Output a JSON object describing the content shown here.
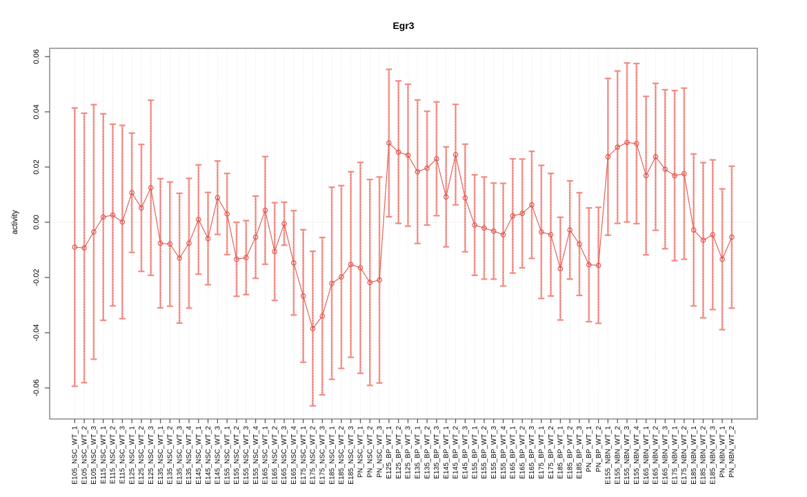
{
  "page": {
    "background": "#ffffff"
  },
  "chart_data": {
    "type": "line",
    "subtype": "points-with-symmetric-error-bars",
    "title": "Egr3",
    "xlabel": "",
    "ylabel": "activity",
    "ylim": [
      -0.071,
      0.063
    ],
    "yticks": [
      0.06,
      0.04,
      0.02,
      0.0,
      -0.02,
      -0.04,
      -0.06
    ],
    "ytick_labels": [
      "0.06",
      "0.04",
      "0.02",
      "0.00",
      "-0.02",
      "-0.04",
      "-0.06"
    ],
    "legend": "none",
    "grid": {
      "vertical_dotted_per_category": true,
      "horizontal_zero_line_dotted": true
    },
    "point_style": "open-circle",
    "colors": {
      "line": "#e2544c",
      "point_stroke": "#e2544c",
      "error_bar_light": "#f5a39c",
      "error_bar_cap": "#f28a81",
      "error_bar_dashed_core": "#e2544c",
      "gridline": "#e4e4e4",
      "zero_line": "#d9d9d9",
      "box": "#8a8a8a",
      "tick": "#4d4d4d",
      "text": "#000000"
    },
    "categories": [
      "E105_NSC_WT_1",
      "E105_NSC_WT_2",
      "E105_NSC_WT_3",
      "E115_NSC_WT_1",
      "E115_NSC_WT_2",
      "E115_NSC_WT_3",
      "E125_NSC_WT_1",
      "E125_NSC_WT_2",
      "E125_NSC_WT_3",
      "E135_NSC_WT_1",
      "E135_NSC_WT_2",
      "E135_NSC_WT_3",
      "E135_NSC_WT_4",
      "E145_NSC_WT_1",
      "E145_NSC_WT_2",
      "E145_NSC_WT_3",
      "E155_NSC_WT_1",
      "E155_NSC_WT_2",
      "E155_NSC_WT_3",
      "E155_NSC_WT_4",
      "E165_NSC_WT_1",
      "E165_NSC_WT_2",
      "E165_NSC_WT_3",
      "E165_NSC_WT_4",
      "E175_NSC_WT_1",
      "E175_NSC_WT_2",
      "E175_NSC_WT_3",
      "E185_NSC_WT_1",
      "E185_NSC_WT_2",
      "E185_NSC_WT_3",
      "PN_NSC_WT_1",
      "PN_NSC_WT_2",
      "PN_NSC_WT_3",
      "E125_BP_WT_1",
      "E125_BP_WT_2",
      "E125_BP_WT_3",
      "E135_BP_WT_1",
      "E135_BP_WT_2",
      "E135_BP_WT_3",
      "E145_BP_WT_1",
      "E145_BP_WT_2",
      "E145_BP_WT_3",
      "E155_BP_WT_1",
      "E155_BP_WT_2",
      "E155_BP_WT_3",
      "E155_BP_WT_4",
      "E165_BP_WT_1",
      "E165_BP_WT_2",
      "E165_BP_WT_3",
      "E175_BP_WT_1",
      "E175_BP_WT_2",
      "E185_BP_WT_1",
      "E185_BP_WT_2",
      "E185_BP_WT_3",
      "PN_BP_WT_1",
      "PN_BP_WT_2",
      "E155_NBN_WT_1",
      "E155_NBN_WT_2",
      "E155_NBN_WT_3",
      "E155_NBN_WT_4",
      "E165_NBN_WT_1",
      "E165_NBN_WT_2",
      "E165_NBN_WT_3",
      "E175_NBN_WT_1",
      "E175_NBN_WT_2",
      "E185_NBN_WT_1",
      "E185_NBN_WT_2",
      "E185_NBN_WT_3",
      "PN_NBN_WT_1",
      "PN_NBN_WT_2"
    ],
    "series": [
      {
        "name": "Egr3 activity",
        "values": [
          -0.009,
          -0.0093,
          -0.0035,
          0.0019,
          0.0026,
          0.0001,
          0.0107,
          0.0052,
          0.0125,
          -0.0076,
          -0.0079,
          -0.013,
          -0.0076,
          0.001,
          -0.0059,
          0.0089,
          0.003,
          -0.0134,
          -0.0128,
          -0.0054,
          0.0043,
          -0.0106,
          -0.0005,
          -0.0147,
          -0.0267,
          -0.0385,
          -0.034,
          -0.0221,
          -0.0198,
          -0.0153,
          -0.0165,
          -0.0218,
          -0.0209,
          0.0287,
          0.0254,
          0.0243,
          0.0183,
          0.0196,
          0.023,
          0.0092,
          0.0245,
          0.0088,
          -0.001,
          -0.0021,
          -0.0032,
          -0.0045,
          0.0023,
          0.0032,
          0.0063,
          -0.0035,
          -0.0045,
          -0.0168,
          -0.0028,
          -0.0079,
          -0.0154,
          -0.0156,
          0.0237,
          0.0272,
          0.0289,
          0.0285,
          0.0169,
          0.0237,
          0.0192,
          0.0169,
          0.0176,
          -0.0028,
          -0.0065,
          -0.0045,
          -0.0134,
          -0.0054
        ],
        "errors": [
          0.0504,
          0.0488,
          0.0461,
          0.0374,
          0.0329,
          0.035,
          0.0216,
          0.023,
          0.0317,
          0.0234,
          0.0225,
          0.0235,
          0.0235,
          0.0198,
          0.0167,
          0.0133,
          0.0147,
          0.0134,
          0.0134,
          0.0149,
          0.0195,
          0.0177,
          0.0078,
          0.0189,
          0.024,
          0.028,
          0.0285,
          0.0348,
          0.0331,
          0.0336,
          0.0382,
          0.0373,
          0.0373,
          0.0267,
          0.0258,
          0.0257,
          0.026,
          0.0206,
          0.0206,
          0.0181,
          0.0182,
          0.0195,
          0.0182,
          0.0185,
          0.0174,
          0.0186,
          0.0207,
          0.0197,
          0.0194,
          0.0241,
          0.0222,
          0.0186,
          0.0178,
          0.0186,
          0.0206,
          0.021,
          0.0284,
          0.0276,
          0.0288,
          0.029,
          0.0287,
          0.0266,
          0.0288,
          0.0308,
          0.031,
          0.0275,
          0.0281,
          0.0271,
          0.0255,
          0.0257
        ]
      }
    ]
  }
}
